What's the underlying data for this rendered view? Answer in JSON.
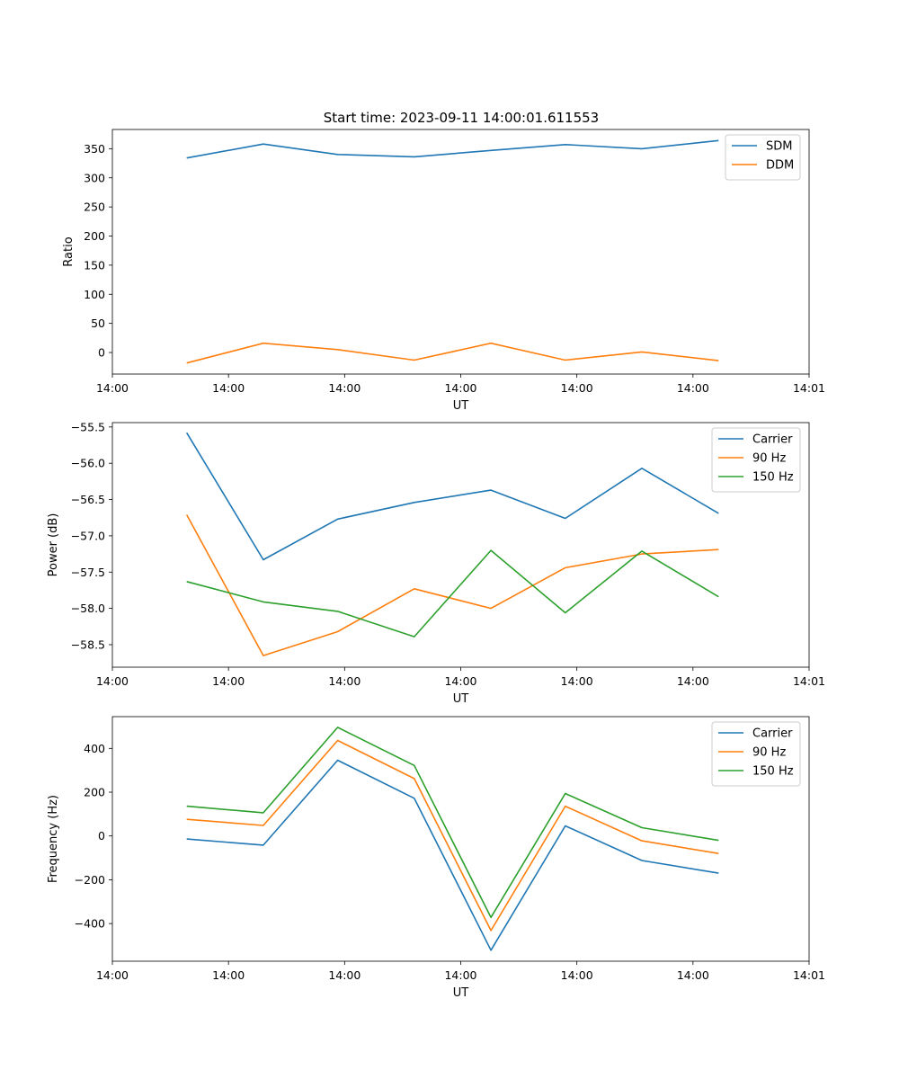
{
  "figure_title": "Start time: 2023-09-11 14:00:01.611553",
  "colors": {
    "blue": "#1f77b4",
    "orange": "#ff7f0e",
    "green": "#2ca02c"
  },
  "chart_data": [
    {
      "type": "line",
      "title": "Start time: 2023-09-11 14:00:01.611553",
      "xlabel": "UT",
      "ylabel": "Ratio",
      "xlim": [
        0,
        30
      ],
      "ylim": [
        -37,
        383
      ],
      "x": [
        3.2,
        6.5,
        9.7,
        13.0,
        16.3,
        19.5,
        22.8,
        26.1
      ],
      "x_ticks": [
        {
          "pos": 0,
          "label": "14:00"
        },
        {
          "pos": 5,
          "label": "14:00"
        },
        {
          "pos": 10,
          "label": "14:00"
        },
        {
          "pos": 15,
          "label": "14:00"
        },
        {
          "pos": 20,
          "label": "14:00"
        },
        {
          "pos": 25,
          "label": "14:00"
        },
        {
          "pos": 30,
          "label": "14:01"
        }
      ],
      "y_ticks": [
        {
          "v": 0,
          "label": "0"
        },
        {
          "v": 50,
          "label": "50"
        },
        {
          "v": 100,
          "label": "100"
        },
        {
          "v": 150,
          "label": "150"
        },
        {
          "v": 200,
          "label": "200"
        },
        {
          "v": 250,
          "label": "250"
        },
        {
          "v": 300,
          "label": "300"
        },
        {
          "v": 350,
          "label": "350"
        }
      ],
      "legend_position": "top-right",
      "series": [
        {
          "name": "SDM",
          "color": "#1f77b4",
          "values": [
            334,
            358,
            340,
            336,
            347,
            357,
            350,
            364
          ]
        },
        {
          "name": "DDM",
          "color": "#ff7f0e",
          "values": [
            -18,
            16,
            5,
            -13,
            16,
            -13,
            1,
            -14
          ]
        }
      ]
    },
    {
      "type": "line",
      "title": "",
      "xlabel": "UT",
      "ylabel": "Power (dB)",
      "xlim": [
        0,
        30
      ],
      "ylim": [
        -58.81,
        -55.44
      ],
      "x": [
        3.2,
        6.5,
        9.7,
        13.0,
        16.3,
        19.5,
        22.8,
        26.1
      ],
      "x_ticks": [
        {
          "pos": 0,
          "label": "14:00"
        },
        {
          "pos": 5,
          "label": "14:00"
        },
        {
          "pos": 10,
          "label": "14:00"
        },
        {
          "pos": 15,
          "label": "14:00"
        },
        {
          "pos": 20,
          "label": "14:00"
        },
        {
          "pos": 25,
          "label": "14:00"
        },
        {
          "pos": 30,
          "label": "14:01"
        }
      ],
      "y_ticks": [
        {
          "v": -58.5,
          "label": "−58.5"
        },
        {
          "v": -58.0,
          "label": "−58.0"
        },
        {
          "v": -57.5,
          "label": "−57.5"
        },
        {
          "v": -57.0,
          "label": "−57.0"
        },
        {
          "v": -56.5,
          "label": "−56.5"
        },
        {
          "v": -56.0,
          "label": "−56.0"
        },
        {
          "v": -55.5,
          "label": "−55.5"
        }
      ],
      "legend_position": "top-right",
      "series": [
        {
          "name": "Carrier",
          "color": "#1f77b4",
          "values": [
            -55.58,
            -57.33,
            -56.77,
            -56.54,
            -56.37,
            -56.76,
            -56.07,
            -56.69
          ]
        },
        {
          "name": "90 Hz",
          "color": "#ff7f0e",
          "values": [
            -56.71,
            -58.65,
            -58.32,
            -57.73,
            -58.0,
            -57.44,
            -57.25,
            -57.19
          ]
        },
        {
          "name": "150 Hz",
          "color": "#2ca02c",
          "values": [
            -57.63,
            -57.91,
            -58.04,
            -58.39,
            -57.2,
            -58.06,
            -57.21,
            -57.84
          ]
        }
      ]
    },
    {
      "type": "line",
      "title": "",
      "xlabel": "UT",
      "ylabel": "Frequency (Hz)",
      "xlim": [
        0,
        30
      ],
      "ylim": [
        -572,
        545
      ],
      "x": [
        3.2,
        6.5,
        9.7,
        13.0,
        16.3,
        19.5,
        22.8,
        26.1
      ],
      "x_ticks": [
        {
          "pos": 0,
          "label": "14:00"
        },
        {
          "pos": 5,
          "label": "14:00"
        },
        {
          "pos": 10,
          "label": "14:00"
        },
        {
          "pos": 15,
          "label": "14:00"
        },
        {
          "pos": 20,
          "label": "14:00"
        },
        {
          "pos": 25,
          "label": "14:00"
        },
        {
          "pos": 30,
          "label": "14:01"
        }
      ],
      "y_ticks": [
        {
          "v": -400,
          "label": "−400"
        },
        {
          "v": -200,
          "label": "−200"
        },
        {
          "v": 0,
          "label": "0"
        },
        {
          "v": 200,
          "label": "200"
        },
        {
          "v": 400,
          "label": "400"
        }
      ],
      "legend_position": "top-right",
      "series": [
        {
          "name": "Carrier",
          "color": "#1f77b4",
          "values": [
            -14,
            -42,
            346,
            172,
            -522,
            46,
            -112,
            -170
          ]
        },
        {
          "name": "90 Hz",
          "color": "#ff7f0e",
          "values": [
            76,
            48,
            436,
            262,
            -432,
            136,
            -22,
            -80
          ]
        },
        {
          "name": "150 Hz",
          "color": "#2ca02c",
          "values": [
            136,
            106,
            496,
            322,
            -372,
            194,
            38,
            -20
          ]
        }
      ]
    }
  ]
}
